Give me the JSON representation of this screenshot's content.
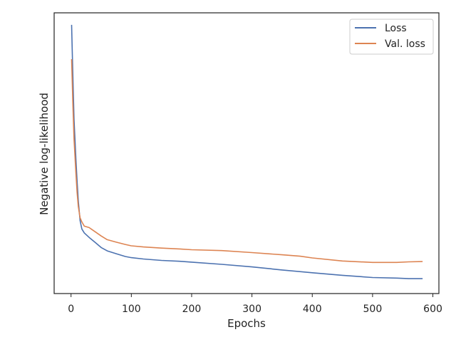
{
  "chart_data": {
    "type": "line",
    "xlabel": "Epochs",
    "ylabel": "Negative log-likelihood",
    "xlim": [
      -28,
      610
    ],
    "ylim": [
      0,
      1
    ],
    "x_ticks": [
      0,
      100,
      200,
      300,
      400,
      500,
      600
    ],
    "y_ticks": [],
    "grid": false,
    "legend_position": "top-right",
    "series": [
      {
        "name": "Loss",
        "color": "#4c72b0",
        "x": [
          1,
          3,
          5,
          8,
          10,
          12,
          15,
          18,
          22,
          30,
          40,
          50,
          60,
          75,
          90,
          100,
          120,
          150,
          180,
          200,
          250,
          300,
          350,
          400,
          450,
          500,
          540,
          560,
          583
        ],
        "y": [
          0.957,
          0.78,
          0.62,
          0.48,
          0.4,
          0.33,
          0.26,
          0.23,
          0.216,
          0.2,
          0.182,
          0.164,
          0.152,
          0.142,
          0.132,
          0.128,
          0.123,
          0.118,
          0.115,
          0.112,
          0.104,
          0.095,
          0.084,
          0.074,
          0.065,
          0.057,
          0.055,
          0.053,
          0.053
        ]
      },
      {
        "name": "Val. loss",
        "color": "#dd8452",
        "x": [
          1,
          3,
          5,
          8,
          10,
          12,
          15,
          18,
          22,
          30,
          40,
          50,
          60,
          75,
          90,
          100,
          120,
          150,
          180,
          200,
          250,
          300,
          350,
          380,
          400,
          450,
          500,
          540,
          560,
          583
        ],
        "y": [
          0.835,
          0.68,
          0.55,
          0.43,
          0.36,
          0.31,
          0.27,
          0.255,
          0.24,
          0.235,
          0.22,
          0.205,
          0.192,
          0.183,
          0.175,
          0.17,
          0.166,
          0.162,
          0.159,
          0.156,
          0.153,
          0.146,
          0.138,
          0.133,
          0.127,
          0.116,
          0.111,
          0.111,
          0.113,
          0.114
        ]
      }
    ]
  }
}
